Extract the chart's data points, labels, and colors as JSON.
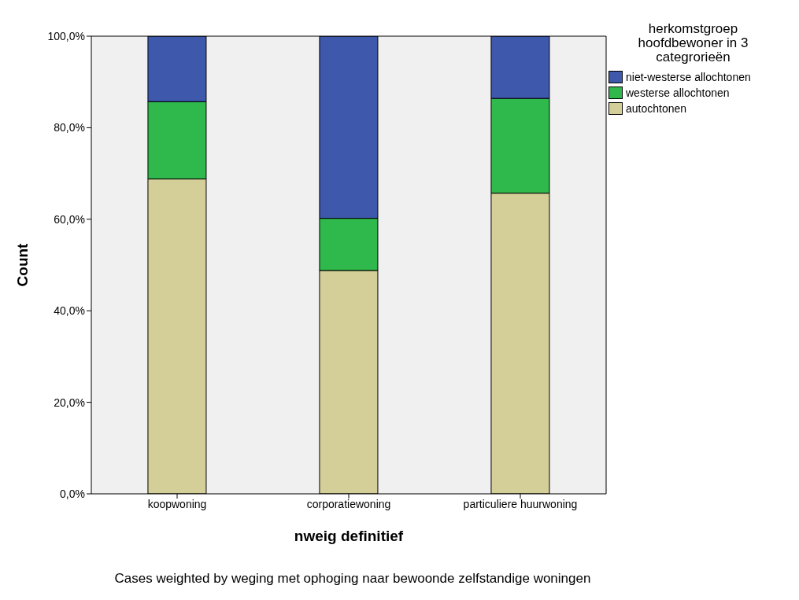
{
  "chart_data": {
    "type": "bar",
    "stacked": true,
    "xlabel": "nweig definitief",
    "ylabel": "Count",
    "legend_title": "herkomstgroep hoofdbewoner in 3 categrorieën",
    "legend": "right",
    "categories": [
      "koopwoning",
      "corporatiewoning",
      "particuliere huurwoning"
    ],
    "series": [
      {
        "name": "autochtonen",
        "color": "#d4cf98",
        "values": [
          68.8,
          48.8,
          65.7
        ]
      },
      {
        "name": "westerse allochtonen",
        "color": "#2fb84b",
        "values": [
          16.9,
          11.4,
          20.7
        ]
      },
      {
        "name": "niet-westerse allochtonen",
        "color": "#3e58ac",
        "values": [
          14.3,
          39.8,
          13.6
        ]
      }
    ],
    "ylim": [
      0,
      100
    ],
    "yticks": [
      {
        "value": 0,
        "label": "0,0%"
      },
      {
        "value": 20,
        "label": "20,0%"
      },
      {
        "value": 40,
        "label": "40,0%"
      },
      {
        "value": 60,
        "label": "60,0%"
      },
      {
        "value": 80,
        "label": "80,0%"
      },
      {
        "value": 100,
        "label": "100,0%"
      }
    ],
    "grid": false,
    "annotations": [
      "Cases weighted by weging met ophoging naar bewoonde zelfstandige woningen"
    ]
  }
}
